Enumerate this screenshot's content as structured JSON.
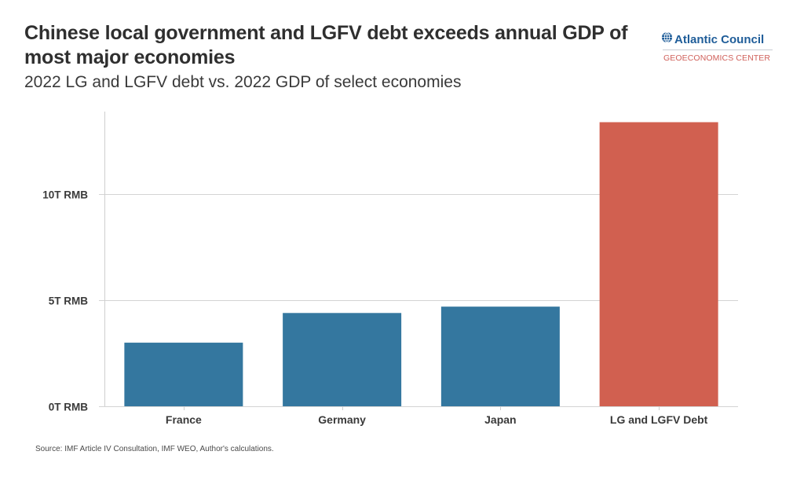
{
  "header": {
    "title": "Chinese local government and LGFV debt exceeds annual GDP of most major economies",
    "subtitle": "2022 LG and LGFV debt vs. 2022 GDP of select economies"
  },
  "logo": {
    "name": "Atlantic Council",
    "sub": "GEOECONOMICS CENTER",
    "icon": "globe-icon",
    "colors": {
      "name": "#1f5d99",
      "sub": "#d0605a"
    }
  },
  "source": "Source: IMF Article IV Consultation, IMF WEO, Author's calculations.",
  "chart_data": {
    "type": "bar",
    "title": "Chinese local government and LGFV debt exceeds annual GDP of most major economies",
    "subtitle": "2022 LG and LGFV debt vs. 2022 GDP of select economies",
    "xlabel": "",
    "ylabel": "",
    "categories": [
      "France",
      "Germany",
      "Japan",
      "LG and LGFV Debt"
    ],
    "values": [
      3.0,
      4.4,
      4.7,
      13.4
    ],
    "units": "trillion RMB",
    "colors": [
      "#34779f",
      "#34779f",
      "#34779f",
      "#d16050"
    ],
    "ylim": [
      0,
      13.9
    ],
    "yticks": [
      0,
      5,
      10
    ],
    "ytick_labels": [
      "0T RMB",
      "5T RMB",
      "10T RMB"
    ],
    "grid": true,
    "legend": "none"
  }
}
